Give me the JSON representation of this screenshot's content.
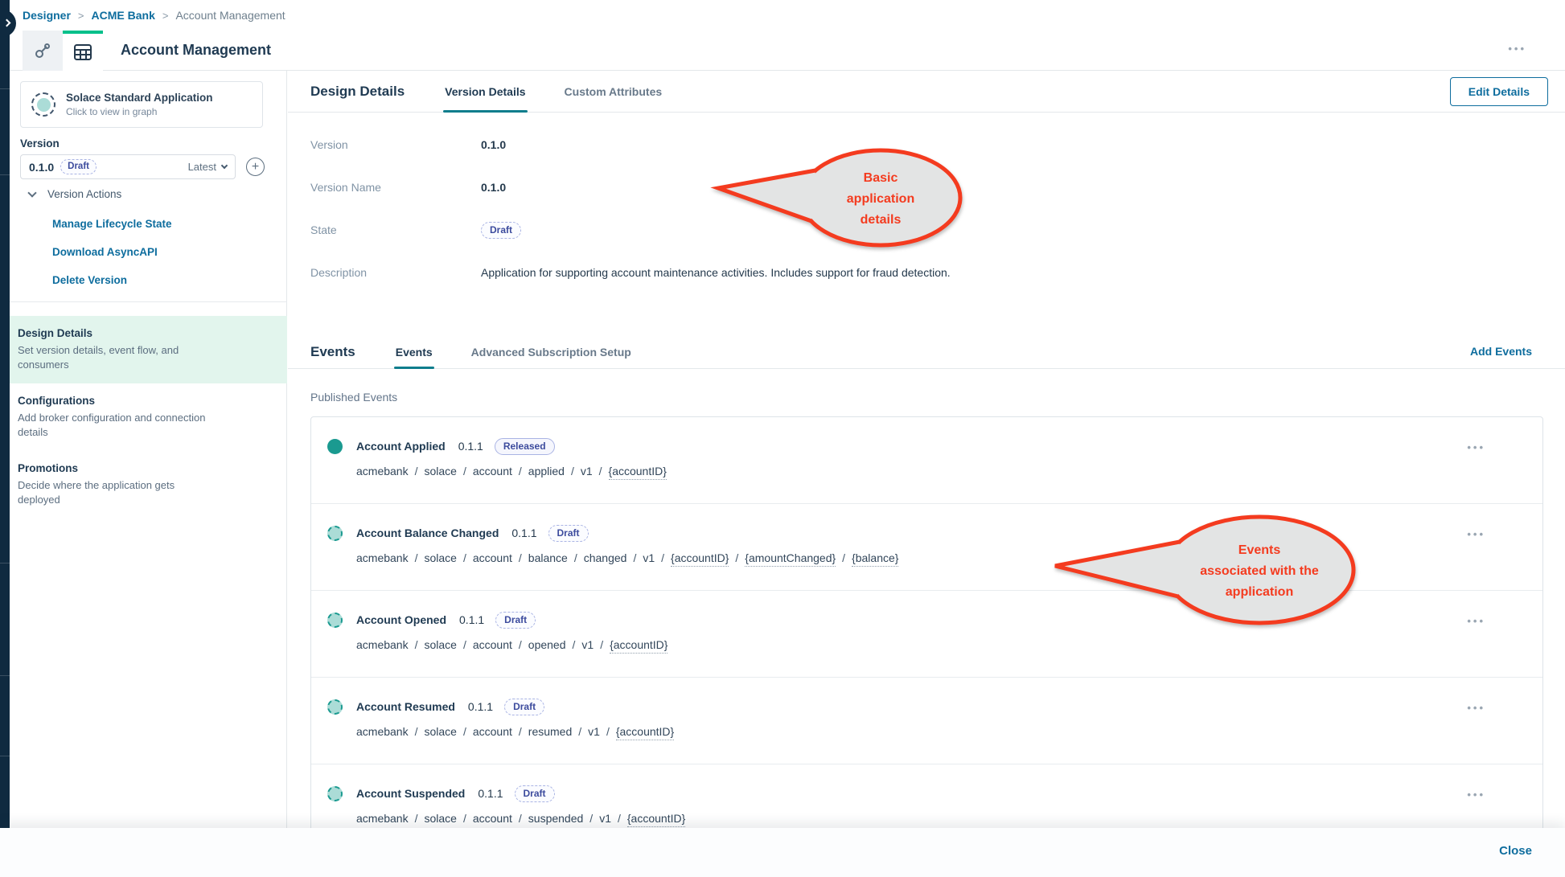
{
  "header": {
    "breadcrumb": [
      "Designer",
      "ACME Bank",
      "Account Management"
    ],
    "title": "Account Management"
  },
  "sidebar": {
    "app_card": {
      "title": "Solace Standard Application",
      "subtitle": "Click to view in graph"
    },
    "version_label": "Version",
    "version_select": {
      "value": "0.1.0",
      "badge": "Draft",
      "latest_label": "Latest"
    },
    "version_actions_label": "Version Actions",
    "actions": [
      {
        "label": "Manage Lifecycle State"
      },
      {
        "label": "Download AsyncAPI"
      },
      {
        "label": "Delete Version"
      }
    ],
    "nav": [
      {
        "title": "Design Details",
        "description": "Set version details, event flow, and consumers",
        "selected": true
      },
      {
        "title": "Configurations",
        "description": "Add broker configuration and connection details",
        "selected": false
      },
      {
        "title": "Promotions",
        "description": "Decide where the application gets deployed",
        "selected": false
      }
    ]
  },
  "design_details": {
    "heading": "Design Details",
    "tabs": [
      {
        "label": "Version Details",
        "active": true
      },
      {
        "label": "Custom Attributes",
        "active": false
      }
    ],
    "edit_button": "Edit Details",
    "fields": [
      {
        "label": "Version",
        "value": "0.1.0",
        "type": "text",
        "emphasis": true
      },
      {
        "label": "Version Name",
        "value": "0.1.0",
        "type": "text",
        "emphasis": true
      },
      {
        "label": "State",
        "value": "Draft",
        "type": "badge"
      },
      {
        "label": "Description",
        "value": "Application for supporting account maintenance activities. Includes support for fraud detection.",
        "type": "text",
        "emphasis": false
      }
    ]
  },
  "events_section": {
    "heading": "Events",
    "tabs": [
      {
        "label": "Events",
        "active": true
      },
      {
        "label": "Advanced Subscription Setup",
        "active": false
      }
    ],
    "add_button": "Add Events",
    "list_label": "Published Events",
    "events": [
      {
        "name": "Account Applied",
        "version": "0.1.1",
        "state": "Released",
        "topic": [
          "acmebank",
          "solace",
          "account",
          "applied",
          "v1",
          "{accountID}"
        ]
      },
      {
        "name": "Account Balance Changed",
        "version": "0.1.1",
        "state": "Draft",
        "topic": [
          "acmebank",
          "solace",
          "account",
          "balance",
          "changed",
          "v1",
          "{accountID}",
          "{amountChanged}",
          "{balance}"
        ]
      },
      {
        "name": "Account Opened",
        "version": "0.1.1",
        "state": "Draft",
        "topic": [
          "acmebank",
          "solace",
          "account",
          "opened",
          "v1",
          "{accountID}"
        ]
      },
      {
        "name": "Account Resumed",
        "version": "0.1.1",
        "state": "Draft",
        "topic": [
          "acmebank",
          "solace",
          "account",
          "resumed",
          "v1",
          "{accountID}"
        ]
      },
      {
        "name": "Account Suspended",
        "version": "0.1.1",
        "state": "Draft",
        "topic": [
          "acmebank",
          "solace",
          "account",
          "suspended",
          "v1",
          "{accountID}"
        ]
      }
    ]
  },
  "annotations": [
    {
      "lines": [
        "Basic",
        "application",
        "details"
      ]
    },
    {
      "lines": [
        "Events",
        "associated with the",
        "application"
      ]
    }
  ],
  "footer": {
    "close_label": "Close"
  },
  "menu_ellipsis": "•••",
  "colors": {
    "accent_green": "#00c08b",
    "accent_teal": "#0e7d8c",
    "link_blue": "#0e6d9e",
    "navy_text": "#1f3a52",
    "rail_navy": "#0f2a40",
    "mint_selected": "#e2f5ed",
    "badge_purple": "#3c4b9d",
    "event_teal": "#1a9a90",
    "event_teal_light": "#abdcd7",
    "callout_red": "#f43b1f",
    "callout_fill": "#e3e4e4"
  }
}
